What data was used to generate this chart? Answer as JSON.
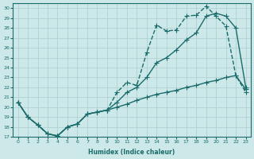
{
  "xlabel": "Humidex (Indice chaleur)",
  "ylabel": "",
  "background_color": "#cde8e8",
  "grid_color": "#aacece",
  "line_color": "#1a6b6b",
  "xlim": [
    -0.5,
    23.5
  ],
  "ylim": [
    17,
    30.5
  ],
  "xticks": [
    0,
    1,
    2,
    3,
    4,
    5,
    6,
    7,
    8,
    9,
    10,
    11,
    12,
    13,
    14,
    15,
    16,
    17,
    18,
    19,
    20,
    21,
    22,
    23
  ],
  "yticks": [
    17,
    18,
    19,
    20,
    21,
    22,
    23,
    24,
    25,
    26,
    27,
    28,
    29,
    30
  ],
  "line1_x": [
    0,
    1,
    2,
    3,
    4,
    5,
    6,
    7,
    8,
    9,
    10,
    11,
    12,
    13,
    14,
    15,
    16,
    17,
    18,
    19,
    20,
    21,
    22,
    23
  ],
  "line1_y": [
    20.5,
    19.0,
    18.2,
    17.3,
    17.1,
    18.0,
    18.3,
    19.3,
    19.5,
    19.7,
    21.5,
    22.5,
    22.2,
    25.5,
    28.3,
    27.7,
    27.8,
    29.2,
    29.3,
    30.2,
    29.2,
    28.2,
    23.2,
    21.5
  ],
  "line2_x": [
    0,
    1,
    2,
    3,
    4,
    5,
    6,
    7,
    8,
    9,
    10,
    11,
    12,
    13,
    14,
    15,
    16,
    17,
    18,
    19,
    20,
    21,
    22,
    23
  ],
  "line2_y": [
    20.5,
    19.0,
    18.2,
    17.3,
    17.1,
    18.0,
    18.3,
    19.3,
    19.5,
    19.7,
    20.5,
    21.5,
    22.0,
    23.0,
    24.5,
    25.0,
    25.8,
    26.8,
    27.5,
    29.2,
    29.5,
    29.2,
    28.0,
    22.0
  ],
  "line3_x": [
    0,
    1,
    2,
    3,
    4,
    5,
    6,
    7,
    8,
    9,
    10,
    11,
    12,
    13,
    14,
    15,
    16,
    17,
    18,
    19,
    20,
    21,
    22,
    23
  ],
  "line3_y": [
    20.5,
    19.0,
    18.2,
    17.3,
    17.1,
    18.0,
    18.3,
    19.3,
    19.5,
    19.7,
    20.0,
    20.3,
    20.7,
    21.0,
    21.3,
    21.5,
    21.7,
    22.0,
    22.2,
    22.5,
    22.7,
    23.0,
    23.2,
    21.8
  ],
  "marker_size": 2.5,
  "line_width": 1.0
}
